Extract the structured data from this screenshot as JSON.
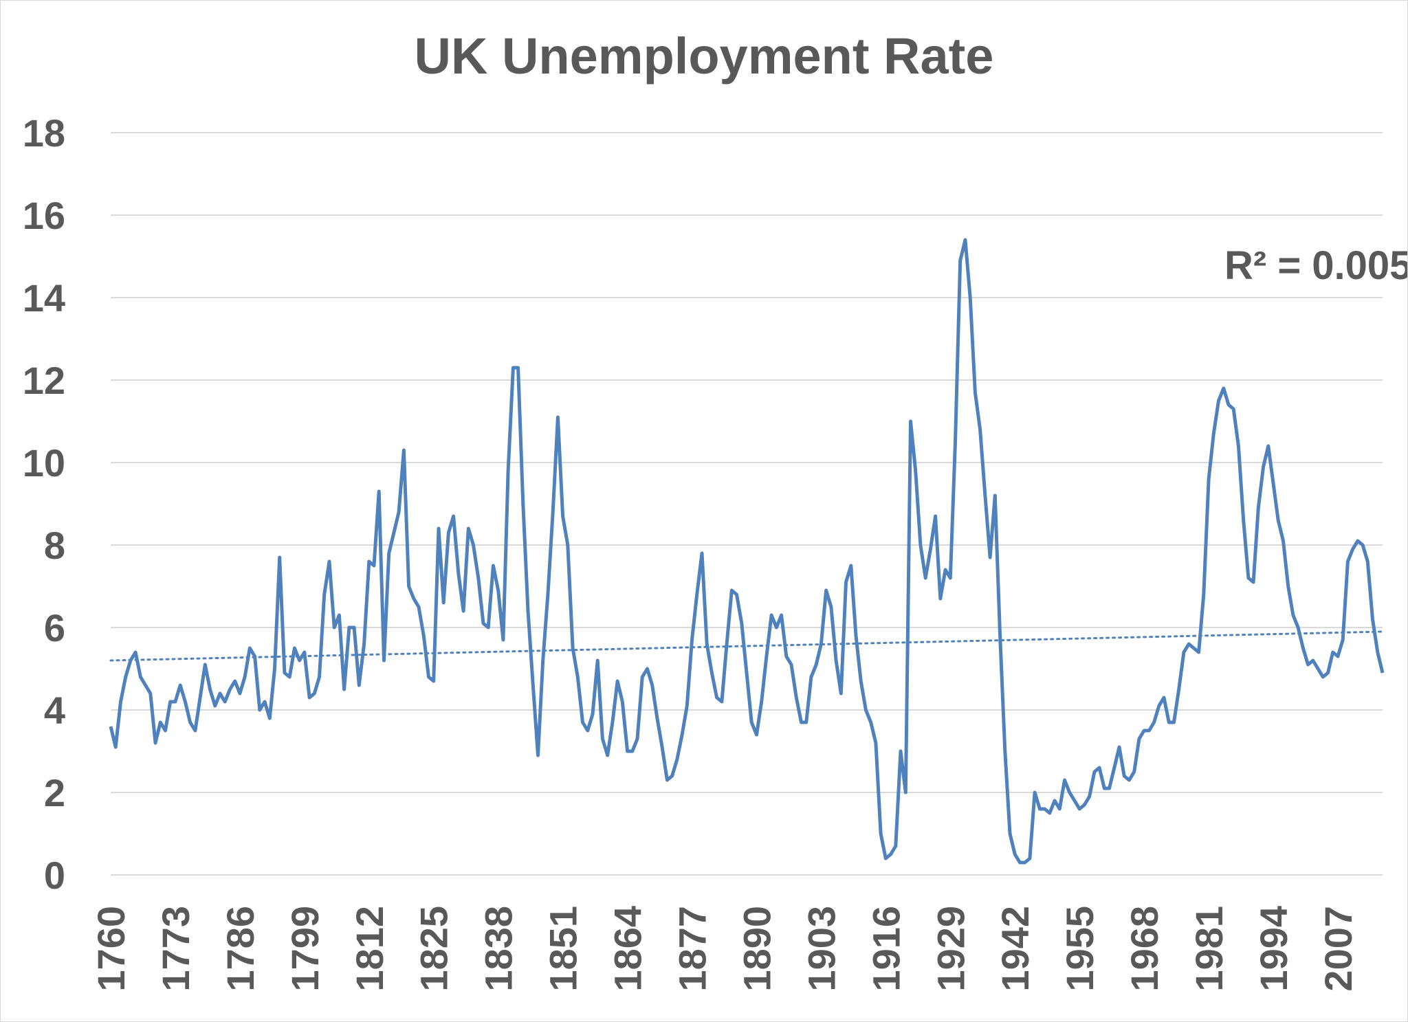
{
  "chart_data": {
    "type": "line",
    "title": "UK Unemployment Rate",
    "xlabel": "",
    "ylabel": "",
    "ylim": [
      0,
      18
    ],
    "yticks": [
      "0",
      "2",
      "4",
      "6",
      "8",
      "10",
      "12",
      "14",
      "16",
      "18"
    ],
    "xtick_labels": [
      "1760",
      "1773",
      "1786",
      "1799",
      "1812",
      "1825",
      "1838",
      "1851",
      "1864",
      "1877",
      "1890",
      "1903",
      "1916",
      "1929",
      "1942",
      "1955",
      "1968",
      "1981",
      "1994",
      "2007"
    ],
    "grid": "horizontal",
    "line_color": "#4f81bd",
    "trendline": {
      "style": "dotted",
      "start_value": 5.2,
      "end_value": 5.9
    },
    "annotation": "R² = 0.005",
    "x": [
      1760,
      1761,
      1762,
      1763,
      1764,
      1765,
      1766,
      1767,
      1768,
      1769,
      1770,
      1771,
      1772,
      1773,
      1774,
      1775,
      1776,
      1777,
      1778,
      1779,
      1780,
      1781,
      1782,
      1783,
      1784,
      1785,
      1786,
      1787,
      1788,
      1789,
      1790,
      1791,
      1792,
      1793,
      1794,
      1795,
      1796,
      1797,
      1798,
      1799,
      1800,
      1801,
      1802,
      1803,
      1804,
      1805,
      1806,
      1807,
      1808,
      1809,
      1810,
      1811,
      1812,
      1813,
      1814,
      1815,
      1816,
      1817,
      1818,
      1819,
      1820,
      1821,
      1822,
      1823,
      1824,
      1825,
      1826,
      1827,
      1828,
      1829,
      1830,
      1831,
      1832,
      1833,
      1834,
      1835,
      1836,
      1837,
      1838,
      1839,
      1840,
      1841,
      1842,
      1843,
      1844,
      1845,
      1846,
      1847,
      1848,
      1849,
      1850,
      1851,
      1852,
      1853,
      1854,
      1855,
      1856,
      1857,
      1858,
      1859,
      1860,
      1861,
      1862,
      1863,
      1864,
      1865,
      1866,
      1867,
      1868,
      1869,
      1870,
      1871,
      1872,
      1873,
      1874,
      1875,
      1876,
      1877,
      1878,
      1879,
      1880,
      1881,
      1882,
      1883,
      1884,
      1885,
      1886,
      1887,
      1888,
      1889,
      1890,
      1891,
      1892,
      1893,
      1894,
      1895,
      1896,
      1897,
      1898,
      1899,
      1900,
      1901,
      1902,
      1903,
      1904,
      1905,
      1906,
      1907,
      1908,
      1909,
      1910,
      1911,
      1912,
      1913,
      1914,
      1915,
      1916,
      1917,
      1918,
      1919,
      1920,
      1921,
      1922,
      1923,
      1924,
      1925,
      1926,
      1927,
      1928,
      1929,
      1930,
      1931,
      1932,
      1933,
      1934,
      1935,
      1936,
      1937,
      1938,
      1939,
      1940,
      1941,
      1942,
      1943,
      1944,
      1945,
      1946,
      1947,
      1948,
      1949,
      1950,
      1951,
      1952,
      1953,
      1954,
      1955,
      1956,
      1957,
      1958,
      1959,
      1960,
      1961,
      1962,
      1963,
      1964,
      1965,
      1966,
      1967,
      1968,
      1969,
      1970,
      1971,
      1972,
      1973,
      1974,
      1975,
      1976,
      1977,
      1978,
      1979,
      1980,
      1981,
      1982,
      1983,
      1984,
      1985,
      1986,
      1987,
      1988,
      1989,
      1990,
      1991,
      1992,
      1993,
      1994,
      1995,
      1996,
      1997,
      1998,
      1999,
      2000,
      2001,
      2002,
      2003,
      2004,
      2005,
      2006,
      2007,
      2008,
      2009,
      2010,
      2011,
      2012,
      2013,
      2014,
      2015,
      2016
    ],
    "values": [
      3.6,
      3.1,
      4.2,
      4.8,
      5.2,
      5.4,
      4.8,
      4.6,
      4.4,
      3.2,
      3.7,
      3.5,
      4.2,
      4.2,
      4.6,
      4.2,
      3.7,
      3.5,
      4.3,
      5.1,
      4.5,
      4.1,
      4.4,
      4.2,
      4.5,
      4.7,
      4.4,
      4.8,
      5.5,
      5.3,
      4.0,
      4.2,
      3.8,
      5.0,
      7.7,
      4.9,
      4.8,
      5.5,
      5.2,
      5.4,
      4.3,
      4.4,
      4.8,
      6.8,
      7.6,
      6.0,
      6.3,
      4.5,
      6.0,
      6.0,
      4.6,
      5.6,
      7.6,
      7.5,
      9.3,
      5.2,
      7.8,
      8.3,
      8.8,
      10.3,
      7.0,
      6.7,
      6.5,
      5.8,
      4.8,
      4.7,
      8.4,
      6.6,
      8.3,
      8.7,
      7.3,
      6.4,
      8.4,
      8.0,
      7.2,
      6.1,
      6.0,
      7.5,
      6.9,
      5.7,
      9.8,
      12.3,
      12.3,
      9.0,
      6.4,
      4.6,
      2.9,
      5.2,
      6.8,
      8.8,
      11.1,
      8.7,
      8.0,
      5.5,
      4.8,
      3.7,
      3.5,
      3.9,
      5.2,
      3.3,
      2.9,
      3.7,
      4.7,
      4.2,
      3.0,
      3.0,
      3.3,
      4.8,
      5.0,
      4.6,
      3.8,
      3.1,
      2.3,
      2.4,
      2.8,
      3.4,
      4.1,
      5.7,
      6.8,
      7.8,
      5.6,
      4.9,
      4.3,
      4.2,
      5.6,
      6.9,
      6.8,
      6.1,
      4.9,
      3.7,
      3.4,
      4.2,
      5.3,
      6.3,
      6.0,
      6.3,
      5.3,
      5.1,
      4.3,
      3.7,
      3.7,
      4.8,
      5.1,
      5.6,
      6.9,
      6.5,
      5.2,
      4.4,
      7.1,
      7.5,
      5.8,
      4.7,
      4.0,
      3.7,
      3.2,
      1.0,
      0.4,
      0.5,
      0.7,
      3.0,
      2.0,
      11.0,
      9.8,
      8.0,
      7.2,
      7.9,
      8.7,
      6.7,
      7.4,
      7.2,
      10.5,
      14.9,
      15.4,
      14.0,
      11.7,
      10.8,
      9.2,
      7.7,
      9.2,
      5.8,
      3.0,
      1.0,
      0.5,
      0.3,
      0.3,
      0.4,
      2.0,
      1.6,
      1.6,
      1.5,
      1.8,
      1.6,
      2.3,
      2.0,
      1.8,
      1.6,
      1.7,
      1.9,
      2.5,
      2.6,
      2.1,
      2.1,
      2.6,
      3.1,
      2.4,
      2.3,
      2.5,
      3.3,
      3.5,
      3.5,
      3.7,
      4.1,
      4.3,
      3.7,
      3.7,
      4.5,
      5.4,
      5.6,
      5.5,
      5.4,
      6.8,
      9.6,
      10.7,
      11.5,
      11.8,
      11.4,
      11.3,
      10.4,
      8.6,
      7.2,
      7.1,
      8.9,
      9.9,
      10.4,
      9.5,
      8.6,
      8.1,
      7.0,
      6.3,
      6.0,
      5.5,
      5.1,
      5.2,
      5.0,
      4.8,
      4.9,
      5.4,
      5.3,
      5.7,
      7.6,
      7.9,
      8.1,
      8.0,
      7.6,
      6.2,
      5.4,
      4.9
    ]
  }
}
